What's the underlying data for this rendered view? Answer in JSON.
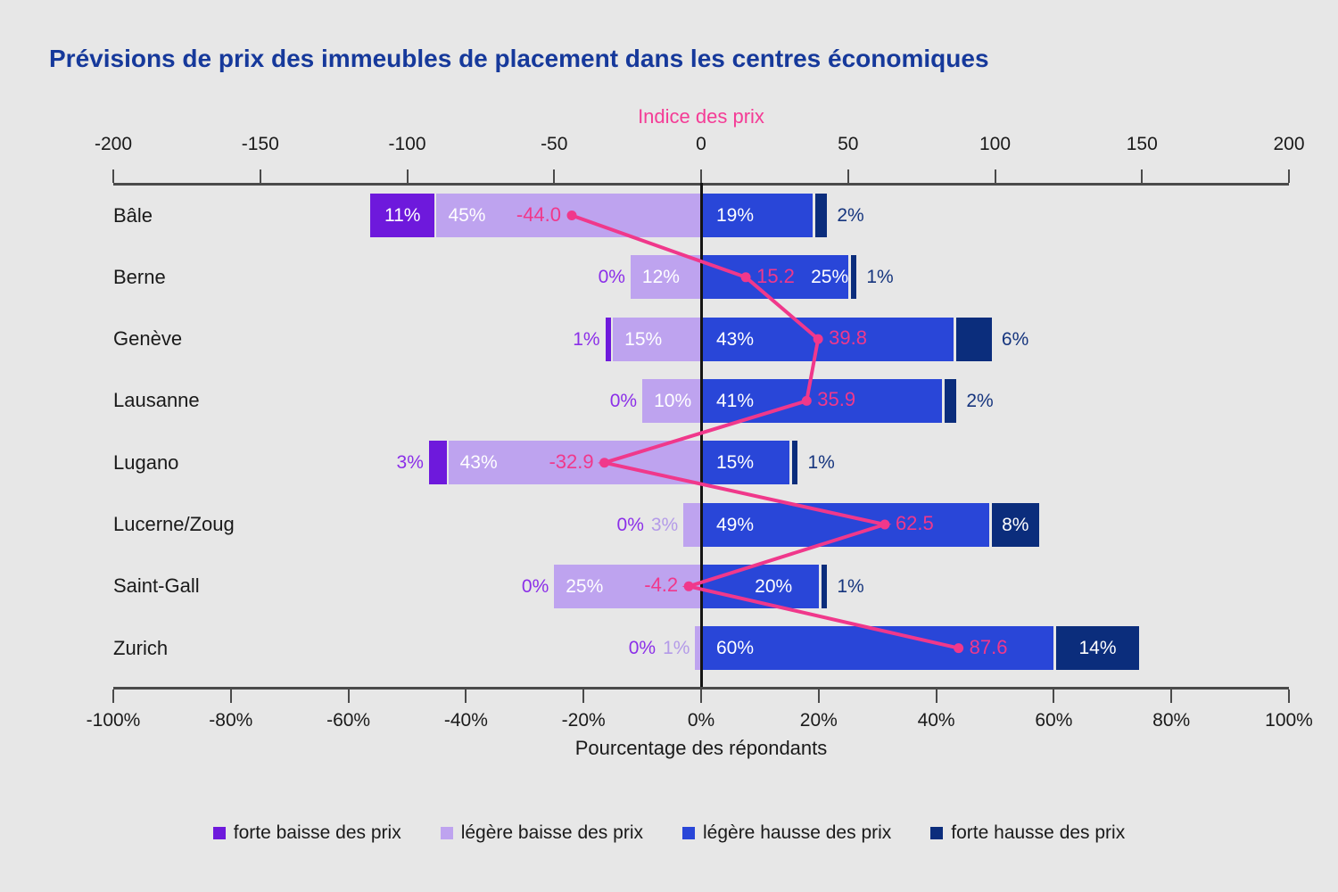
{
  "title": "Prévisions de prix des immeubles de placement dans les centres économiques",
  "colors": {
    "background": "#E7E7E7",
    "title_text": "#16399B",
    "axis_title_pink": "#F43C96",
    "line_pink": "#F0388B",
    "axis_line": "#4A4A4A",
    "zero_line": "#141414",
    "text": "#1A1A1A",
    "forte_baisse": "#6E19DC",
    "legere_baisse": "#BEA3EF",
    "legere_hausse": "#2946D8",
    "forte_hausse": "#0B2D7C",
    "outside_label_forte_baisse": "#8B2FE8",
    "outside_label_legere_baisse": "#B49BE8",
    "outside_label_forte_hausse": "#16357E"
  },
  "chart_data": {
    "type": "bar",
    "variant": "horizontal-diverging-stacked-with-line-overlay",
    "title": "Prévisions de prix des immeubles de placement dans les centres économiques",
    "categories": [
      "Bâle",
      "Berne",
      "Genève",
      "Lausanne",
      "Lugano",
      "Lucerne/Zoug",
      "Saint-Gall",
      "Zurich"
    ],
    "series": [
      {
        "name": "forte baisse des prix",
        "color": "#6E19DC",
        "direction": "negative",
        "unit": "%",
        "values": [
          11,
          0,
          1,
          0,
          3,
          0,
          0,
          0
        ]
      },
      {
        "name": "légère baisse des prix",
        "color": "#BEA3EF",
        "direction": "negative",
        "unit": "%",
        "values": [
          45,
          12,
          15,
          10,
          43,
          3,
          25,
          1
        ]
      },
      {
        "name": "légère hausse des prix",
        "color": "#2946D8",
        "direction": "positive",
        "unit": "%",
        "values": [
          19,
          25,
          43,
          41,
          15,
          49,
          20,
          60
        ]
      },
      {
        "name": "forte hausse des prix",
        "color": "#0B2D7C",
        "direction": "positive",
        "unit": "%",
        "values": [
          2,
          1,
          6,
          2,
          1,
          8,
          1,
          14
        ]
      }
    ],
    "line": {
      "name": "Indice des prix",
      "color": "#F0388B",
      "values": [
        -44.0,
        15.2,
        39.8,
        35.9,
        -32.9,
        62.5,
        -4.2,
        87.6
      ]
    },
    "top_axis": {
      "title": "Indice des prix",
      "min": -200,
      "max": 200,
      "ticks": [
        -200,
        -150,
        -100,
        -50,
        0,
        50,
        100,
        150,
        200
      ]
    },
    "bottom_axis": {
      "title": "Pourcentage des répondants",
      "min": -100,
      "max": 100,
      "ticks": [
        -100,
        -80,
        -60,
        -40,
        -20,
        0,
        20,
        40,
        60,
        80,
        100
      ],
      "tick_suffix": "%"
    },
    "legend": [
      "forte baisse des prix",
      "légère baisse des prix",
      "légère hausse des prix",
      "forte hausse des prix"
    ],
    "legend_position": "bottom",
    "grid": false
  }
}
